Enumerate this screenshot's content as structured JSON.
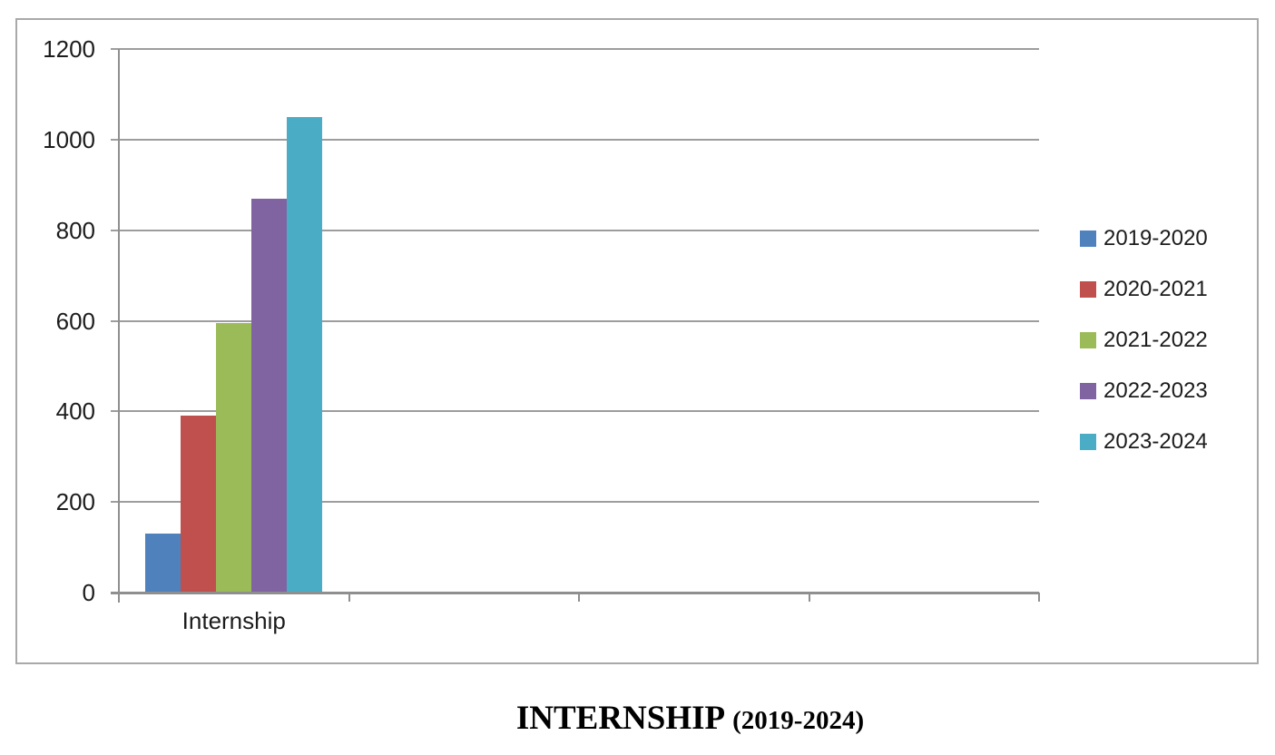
{
  "chart_title": {
    "main": "INTERNSHIP",
    "sub": "(2019-2024)"
  },
  "chart_data": {
    "type": "bar",
    "title": "INTERNSHIP (2019-2024)",
    "categories": [
      "Internship"
    ],
    "series": [
      {
        "name": "2019-2020",
        "values": [
          130
        ],
        "color": "#4f81bd"
      },
      {
        "name": "2020-2021",
        "values": [
          390
        ],
        "color": "#c0504d"
      },
      {
        "name": "2021-2022",
        "values": [
          595
        ],
        "color": "#9bbb59"
      },
      {
        "name": "2022-2023",
        "values": [
          870
        ],
        "color": "#8064a2"
      },
      {
        "name": "2023-2024",
        "values": [
          1050
        ],
        "color": "#4bacc6"
      }
    ],
    "xlabel": "",
    "ylabel": "",
    "ylim": [
      0,
      1200
    ],
    "yticks": [
      0,
      200,
      400,
      600,
      800,
      1000,
      1200
    ],
    "grid": true,
    "legend_position": "right"
  },
  "colors": {
    "gridline": "#9d9d9d",
    "axis": "#8f8f8f",
    "frame_border": "#a9a9a9",
    "text": "#1c1c1c",
    "background": "#ffffff"
  }
}
